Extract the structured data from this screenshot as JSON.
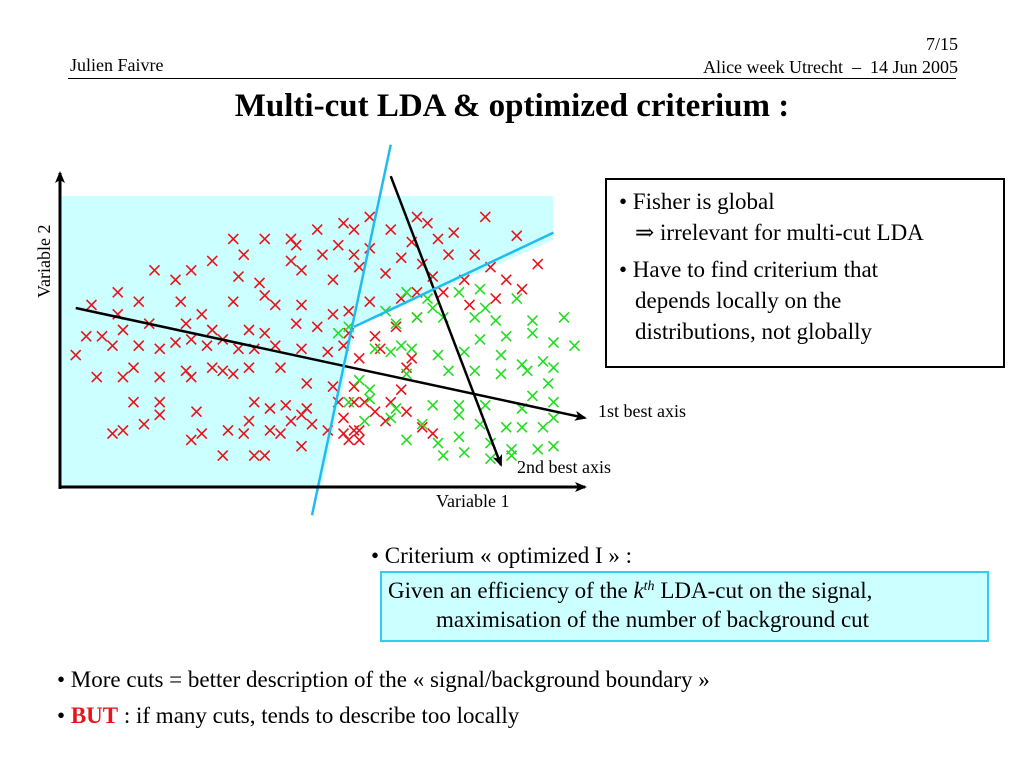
{
  "header": {
    "author": "Julien Faivre",
    "page": "7/15",
    "event": "Alice week Utrecht  –  14 Jun 2005"
  },
  "title": "Multi-cut LDA & optimized criterium :",
  "colors": {
    "signal_region": "#ccffff",
    "cut_line": "#22bbee",
    "background_marker": "#e8141c",
    "signal_marker": "#22dd22",
    "accent_red": "#e8141c"
  },
  "chart_data": {
    "type": "scatter",
    "title": "",
    "xlabel": "Variable 1",
    "ylabel": "Variable 2",
    "xlim": [
      0,
      100
    ],
    "ylim": [
      0,
      100
    ],
    "grid": false,
    "legend": "none",
    "annotations": {
      "axis1_label": "1st best axis",
      "axis2_label": "2nd best axis"
    },
    "series": [
      {
        "name": "background",
        "marker": "x",
        "points": [
          [
            59,
            86
          ],
          [
            68,
            86
          ],
          [
            70,
            84
          ],
          [
            81,
            86
          ],
          [
            54,
            84
          ],
          [
            75,
            81
          ],
          [
            87,
            80
          ],
          [
            33,
            79
          ],
          [
            39,
            79
          ],
          [
            44,
            79
          ],
          [
            49,
            82
          ],
          [
            56,
            82
          ],
          [
            63,
            82
          ],
          [
            35,
            74
          ],
          [
            45,
            77
          ],
          [
            53,
            77
          ],
          [
            67,
            78
          ],
          [
            72,
            79
          ],
          [
            79,
            74
          ],
          [
            91,
            71
          ],
          [
            18,
            69
          ],
          [
            29,
            72
          ],
          [
            44,
            72
          ],
          [
            50,
            74
          ],
          [
            56,
            74
          ],
          [
            59,
            76
          ],
          [
            65,
            73
          ],
          [
            69,
            71
          ],
          [
            74,
            74
          ],
          [
            82,
            70
          ],
          [
            11,
            62
          ],
          [
            25,
            69
          ],
          [
            22,
            66
          ],
          [
            34,
            67
          ],
          [
            38,
            65
          ],
          [
            46,
            69
          ],
          [
            52,
            66
          ],
          [
            57,
            70
          ],
          [
            62,
            68
          ],
          [
            71,
            67
          ],
          [
            77,
            66
          ],
          [
            85,
            66
          ],
          [
            88,
            63
          ],
          [
            6,
            58
          ],
          [
            11,
            55
          ],
          [
            15,
            59
          ],
          [
            23,
            59
          ],
          [
            27,
            55
          ],
          [
            33,
            59
          ],
          [
            39,
            61
          ],
          [
            41,
            58
          ],
          [
            46,
            58
          ],
          [
            52,
            55
          ],
          [
            55,
            56
          ],
          [
            59,
            59
          ],
          [
            65,
            60
          ],
          [
            68,
            62
          ],
          [
            73,
            62
          ],
          [
            78,
            58
          ],
          [
            83,
            60
          ],
          [
            5,
            48
          ],
          [
            12,
            50
          ],
          [
            17,
            52
          ],
          [
            24,
            52
          ],
          [
            29,
            50
          ],
          [
            36,
            50
          ],
          [
            39,
            49
          ],
          [
            45,
            52
          ],
          [
            49,
            51
          ],
          [
            55,
            49
          ],
          [
            60,
            48
          ],
          [
            64,
            51
          ],
          [
            68,
            54
          ],
          [
            3,
            42
          ],
          [
            8,
            48
          ],
          [
            10,
            45
          ],
          [
            15,
            45
          ],
          [
            19,
            44
          ],
          [
            22,
            46
          ],
          [
            25,
            47
          ],
          [
            28,
            45
          ],
          [
            31,
            47
          ],
          [
            34,
            44
          ],
          [
            37,
            44
          ],
          [
            41,
            45
          ],
          [
            46,
            44
          ],
          [
            51,
            43
          ],
          [
            54,
            45
          ],
          [
            57,
            41
          ],
          [
            61,
            44
          ],
          [
            66,
            38
          ],
          [
            67,
            41
          ],
          [
            7,
            35
          ],
          [
            12,
            35
          ],
          [
            14,
            38
          ],
          [
            19,
            35
          ],
          [
            24,
            37
          ],
          [
            25,
            35
          ],
          [
            29,
            38
          ],
          [
            31,
            37
          ],
          [
            33,
            36
          ],
          [
            36,
            38
          ],
          [
            42,
            38
          ],
          [
            47,
            33
          ],
          [
            52,
            32
          ],
          [
            56,
            32
          ],
          [
            14,
            27
          ],
          [
            19,
            27
          ],
          [
            26,
            24
          ],
          [
            37,
            27
          ],
          [
            40,
            25
          ],
          [
            43,
            26
          ],
          [
            47,
            25
          ],
          [
            53,
            27
          ],
          [
            56,
            27
          ],
          [
            58,
            27
          ],
          [
            63,
            27
          ],
          [
            65,
            31
          ],
          [
            66,
            24
          ],
          [
            12,
            18
          ],
          [
            19,
            23
          ],
          [
            25,
            15
          ],
          [
            32,
            18
          ],
          [
            36,
            21
          ],
          [
            40,
            18
          ],
          [
            44,
            21
          ],
          [
            46,
            23
          ],
          [
            54,
            22
          ],
          [
            60,
            24
          ],
          [
            62,
            21
          ],
          [
            69,
            19
          ],
          [
            71,
            17
          ],
          [
            10,
            17
          ],
          [
            16,
            20
          ],
          [
            27,
            17
          ],
          [
            35,
            17
          ],
          [
            42,
            17
          ],
          [
            48,
            20
          ],
          [
            51,
            18
          ],
          [
            56,
            18
          ],
          [
            57,
            18
          ],
          [
            31,
            10
          ],
          [
            37,
            10
          ],
          [
            39,
            10
          ],
          [
            46,
            13
          ],
          [
            54,
            17
          ],
          [
            55,
            15
          ],
          [
            57,
            15
          ]
        ]
      },
      {
        "name": "signal",
        "marker": "x",
        "points": [
          [
            66,
            62
          ],
          [
            62,
            56
          ],
          [
            70,
            60
          ],
          [
            76,
            62
          ],
          [
            80,
            63
          ],
          [
            71,
            57
          ],
          [
            81,
            57
          ],
          [
            87,
            60
          ],
          [
            64,
            52
          ],
          [
            68,
            54
          ],
          [
            73,
            54
          ],
          [
            79,
            54
          ],
          [
            83,
            53
          ],
          [
            90,
            53
          ],
          [
            96,
            54
          ],
          [
            80,
            47
          ],
          [
            85,
            48
          ],
          [
            90,
            49
          ],
          [
            94,
            46
          ],
          [
            98,
            45
          ],
          [
            53,
            49
          ],
          [
            55,
            51
          ],
          [
            60,
            44
          ],
          [
            63,
            43
          ],
          [
            65,
            45
          ],
          [
            67,
            44
          ],
          [
            72,
            42
          ],
          [
            77,
            43
          ],
          [
            84,
            42
          ],
          [
            88,
            39
          ],
          [
            92,
            40
          ],
          [
            94,
            38
          ],
          [
            57,
            34
          ],
          [
            59,
            31
          ],
          [
            66,
            36
          ],
          [
            74,
            37
          ],
          [
            79,
            37
          ],
          [
            84,
            36
          ],
          [
            89,
            37
          ],
          [
            93,
            33
          ],
          [
            55,
            27
          ],
          [
            59,
            28
          ],
          [
            64,
            25
          ],
          [
            71,
            26
          ],
          [
            76,
            26
          ],
          [
            81,
            26
          ],
          [
            88,
            25
          ],
          [
            90,
            29
          ],
          [
            94,
            27
          ],
          [
            58,
            21
          ],
          [
            63,
            22
          ],
          [
            69,
            20
          ],
          [
            76,
            23
          ],
          [
            80,
            20
          ],
          [
            85,
            19
          ],
          [
            88,
            19
          ],
          [
            92,
            19
          ],
          [
            94,
            22
          ],
          [
            66,
            15
          ],
          [
            72,
            14
          ],
          [
            76,
            16
          ],
          [
            82,
            14
          ],
          [
            86,
            12
          ],
          [
            91,
            12
          ],
          [
            94,
            13
          ],
          [
            73,
            10
          ],
          [
            77,
            11
          ],
          [
            82,
            9
          ],
          [
            86,
            10
          ]
        ]
      }
    ],
    "lines": [
      {
        "name": "1st-best-axis",
        "color": "black",
        "from": [
          3,
          57
        ],
        "to": [
          100,
          22
        ],
        "arrow": true
      },
      {
        "name": "2nd-best-axis",
        "color": "black",
        "from": [
          63,
          99
        ],
        "to": [
          84,
          7
        ],
        "arrow": true
      },
      {
        "name": "cut-1",
        "color": "cyan",
        "from": [
          48,
          -9
        ],
        "to": [
          63,
          109
        ]
      },
      {
        "name": "cut-2",
        "color": "cyan",
        "from": [
          56,
          51
        ],
        "to": [
          94,
          81
        ]
      }
    ]
  },
  "fisher_box": {
    "bullet1": "• Fisher is global",
    "bullet1_sub": "⇒ irrelevant for multi-cut LDA",
    "bullet2_line1": "• Have to find criterium that",
    "bullet2_line2": "depends locally on the",
    "bullet2_line3": "distributions, not globally"
  },
  "criterium": {
    "label": "• Criterium « optimized I » :",
    "line1_pre": "Given an efficiency of the ",
    "line1_k": "k",
    "line1_sup": "th",
    "line1_post": " LDA-cut on the signal,",
    "line2": "maximisation of the number of background cut"
  },
  "bottom": {
    "line1": "• More cuts = better description of the « signal/background boundary »",
    "line2_bullet": "• ",
    "line2_em": "BUT",
    "line2_rest": " : if many cuts, tends to describe too locally"
  }
}
